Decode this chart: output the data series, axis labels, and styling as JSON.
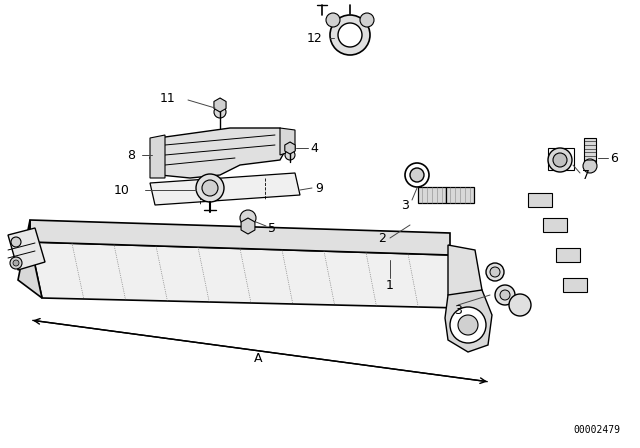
{
  "bg_color": "#ffffff",
  "line_color": "#000000",
  "fig_width": 6.4,
  "fig_height": 4.48,
  "dpi": 100,
  "diagram_code": "00002479",
  "dimension_label": "A"
}
